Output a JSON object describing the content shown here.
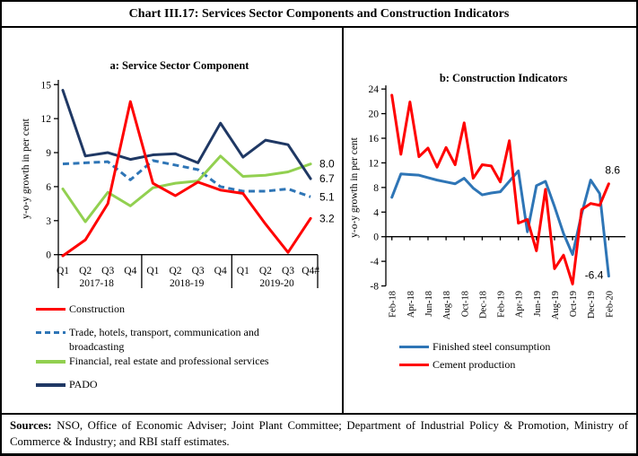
{
  "title": "Chart III.17: Services Sector Components and Construction Indicators",
  "footer": {
    "label": "Sources:",
    "text": "NSO, Office of Economic Adviser; Joint Plant Committee; Department of Industrial Policy & Promotion, Ministry of Commerce & Industry; and RBI staff estimates."
  },
  "colors": {
    "construction_red": "#FF0000",
    "trade_blue": "#2E75B6",
    "financial_green": "#92D050",
    "pado_navy": "#1F3864",
    "steel_blue": "#2E75B6",
    "cement_red": "#FF0000",
    "axis_black": "#000000"
  },
  "chart_data": [
    {
      "id": "service-sector-component",
      "type": "line",
      "title": "a: Service Sector Component",
      "ylabel": "y-o-y growth in per cent",
      "ylim": [
        0,
        15
      ],
      "yticks": [
        0,
        3,
        6,
        9,
        12,
        15
      ],
      "grid": false,
      "legend_position": "below-left",
      "categories": [
        "Q1",
        "Q2",
        "Q3",
        "Q4",
        "Q1",
        "Q2",
        "Q3",
        "Q4",
        "Q1",
        "Q2",
        "Q3",
        "Q4#"
      ],
      "year_groups": [
        "2017-18",
        "2018-19",
        "2019-20"
      ],
      "series": [
        {
          "name": "Construction",
          "color": "#FF0000",
          "dash": false,
          "end_label": "3.2",
          "values": [
            -0.1,
            1.3,
            4.5,
            13.5,
            6.3,
            5.2,
            6.4,
            5.7,
            5.4,
            2.7,
            0.2,
            3.2
          ]
        },
        {
          "name": "Trade, hotels, transport, communication and broadcasting",
          "color": "#2E75B6",
          "dash": true,
          "end_label": "5.1",
          "values": [
            8.0,
            8.1,
            8.2,
            6.6,
            8.3,
            7.9,
            7.5,
            6.0,
            5.6,
            5.6,
            5.8,
            5.1
          ]
        },
        {
          "name": "Financial, real estate and professional services",
          "color": "#92D050",
          "dash": false,
          "end_label": "8.0",
          "values": [
            5.8,
            2.9,
            5.5,
            4.3,
            5.9,
            6.3,
            6.5,
            8.7,
            6.9,
            7.0,
            7.3,
            8.0
          ]
        },
        {
          "name": "PADO",
          "color": "#1F3864",
          "dash": false,
          "end_label": "6.7",
          "values": [
            14.5,
            8.7,
            9.0,
            8.4,
            8.8,
            8.9,
            8.1,
            11.6,
            8.6,
            10.1,
            9.7,
            6.7
          ]
        }
      ]
    },
    {
      "id": "construction-indicators",
      "type": "line",
      "title": "b: Construction Indicators",
      "ylabel": "y-o-y growth in per cent",
      "ylim": [
        -8,
        24
      ],
      "yticks": [
        -8,
        -4,
        0,
        4,
        8,
        12,
        16,
        20,
        24
      ],
      "grid": false,
      "legend_position": "below-center",
      "x": [
        "Feb-18",
        "Mar-18",
        "Apr-18",
        "May-18",
        "Jun-18",
        "Jul-18",
        "Aug-18",
        "Sep-18",
        "Oct-18",
        "Nov-18",
        "Dec-18",
        "Jan-19",
        "Feb-19",
        "Mar-19",
        "Apr-19",
        "May-19",
        "Jun-19",
        "Jul-19",
        "Aug-19",
        "Sep-19",
        "Oct-19",
        "Nov-19",
        "Dec-19",
        "Jan-20",
        "Feb-20"
      ],
      "xtick_labels": [
        "Feb-18",
        "Apr-18",
        "Jun-18",
        "Aug-18",
        "Oct-18",
        "Dec-18",
        "Feb-19",
        "Apr-19",
        "Jun-19",
        "Aug-19",
        "Oct-19",
        "Dec-19",
        "Feb-20"
      ],
      "series": [
        {
          "name": "Finished steel consumption",
          "color": "#2E75B6",
          "dash": false,
          "end_label": "-6.4",
          "values": [
            6.4,
            10.2,
            10.1,
            10.0,
            9.6,
            9.2,
            8.9,
            8.6,
            9.5,
            7.9,
            6.8,
            7.1,
            7.3,
            9.0,
            10.7,
            0.8,
            8.3,
            9.0,
            4.9,
            0.5,
            -2.9,
            3.7,
            9.2,
            7.0,
            -6.4
          ]
        },
        {
          "name": "Cement production",
          "color": "#FF0000",
          "dash": false,
          "end_label": "8.6",
          "values": [
            23.0,
            13.4,
            21.9,
            13.0,
            14.4,
            11.3,
            14.5,
            11.7,
            18.5,
            9.5,
            11.7,
            11.5,
            8.9,
            15.6,
            2.2,
            2.8,
            -2.3,
            7.7,
            -5.2,
            -3.0,
            -7.7,
            4.4,
            5.4,
            5.1,
            8.6
          ]
        }
      ]
    }
  ]
}
